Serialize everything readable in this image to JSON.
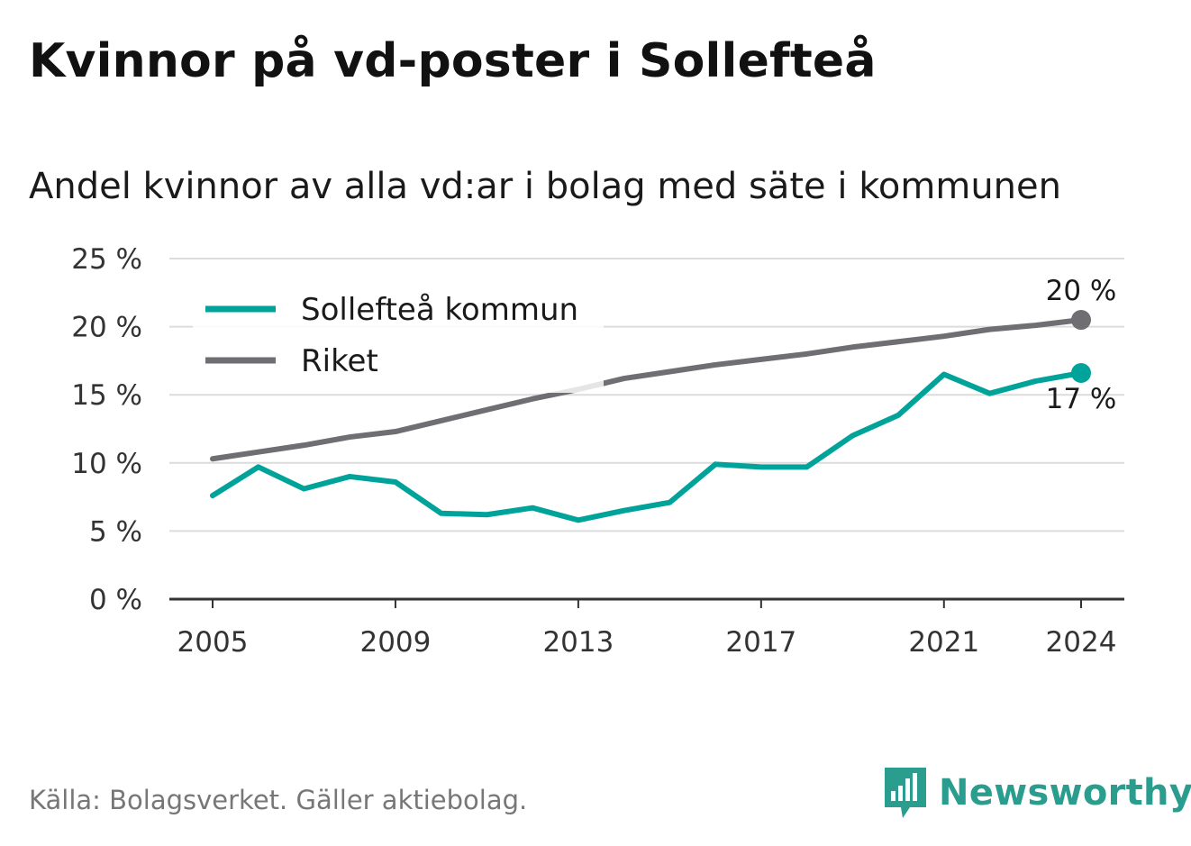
{
  "title": "Kvinnor på vd-poster i Sollefteå",
  "subtitle": "Andel kvinnor av alla vd:ar i bolag med säte i kommunen",
  "source": "Källa: Bolagsverket. Gäller aktiebolag.",
  "brand": {
    "name": "Newsworthy",
    "icon": "newsworthy-logo-icon",
    "color": "#2a9d8f"
  },
  "chart_data": {
    "type": "line",
    "x": [
      2005,
      2006,
      2007,
      2008,
      2009,
      2010,
      2011,
      2012,
      2013,
      2014,
      2015,
      2016,
      2017,
      2018,
      2019,
      2020,
      2021,
      2022,
      2023,
      2024
    ],
    "x_ticks": [
      "2005",
      "2009",
      "2013",
      "2017",
      "2021",
      "2024"
    ],
    "ylim": [
      0,
      25
    ],
    "y_ticks": [
      0,
      5,
      10,
      15,
      20,
      25
    ],
    "y_tick_labels": [
      "0 %",
      "5 %",
      "10 %",
      "15 %",
      "20 %",
      "25 %"
    ],
    "grid": true,
    "legend_position": "top-left",
    "series": [
      {
        "name": "Sollefteå kommun",
        "color": "#00a39a",
        "values": [
          7.6,
          9.7,
          8.1,
          9.0,
          8.6,
          6.3,
          6.2,
          6.7,
          5.8,
          6.5,
          7.1,
          9.9,
          9.7,
          9.7,
          12.0,
          13.5,
          16.5,
          15.1,
          16.0,
          16.6
        ],
        "end_label": "17 %"
      },
      {
        "name": "Riket",
        "color": "#6e6e73",
        "values": [
          10.3,
          10.8,
          11.3,
          11.9,
          12.3,
          13.1,
          13.9,
          14.7,
          15.4,
          16.2,
          16.7,
          17.2,
          17.6,
          18.0,
          18.5,
          18.9,
          19.3,
          19.8,
          20.1,
          20.5
        ],
        "end_label": "20 %"
      }
    ]
  }
}
